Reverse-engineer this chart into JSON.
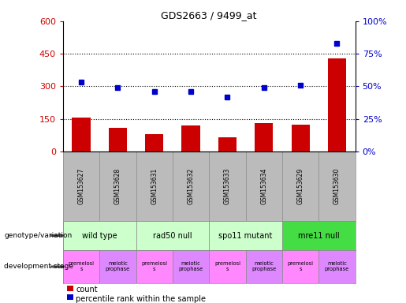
{
  "title": "GDS2663 / 9499_at",
  "samples": [
    "GSM153627",
    "GSM153628",
    "GSM153631",
    "GSM153632",
    "GSM153633",
    "GSM153634",
    "GSM153629",
    "GSM153630"
  ],
  "counts": [
    155,
    110,
    80,
    120,
    65,
    130,
    125,
    430
  ],
  "percentiles": [
    53,
    49,
    46,
    46,
    42,
    49,
    51,
    83
  ],
  "ylim_left": [
    0,
    600
  ],
  "ylim_right": [
    0,
    100
  ],
  "yticks_left": [
    0,
    150,
    300,
    450,
    600
  ],
  "yticks_right": [
    0,
    25,
    50,
    75,
    100
  ],
  "ytick_labels_left": [
    "0",
    "150",
    "300",
    "450",
    "600"
  ],
  "ytick_labels_right": [
    "0%",
    "25%",
    "50%",
    "75%",
    "100%"
  ],
  "hlines": [
    150,
    300,
    450
  ],
  "genotype_groups": [
    {
      "label": "wild type",
      "cols": [
        0,
        1
      ],
      "color": "#ccffcc"
    },
    {
      "label": "rad50 null",
      "cols": [
        2,
        3
      ],
      "color": "#ccffcc"
    },
    {
      "label": "spo11 mutant",
      "cols": [
        4,
        5
      ],
      "color": "#ccffcc"
    },
    {
      "label": "mre11 null",
      "cols": [
        6,
        7
      ],
      "color": "#44dd44"
    }
  ],
  "dev_stages": [
    {
      "label": "premeiosi\ns",
      "col": 0,
      "color": "#ff88ff"
    },
    {
      "label": "meiotic\nprophase",
      "col": 1,
      "color": "#dd88ff"
    },
    {
      "label": "premeiosi\ns",
      "col": 2,
      "color": "#ff88ff"
    },
    {
      "label": "meiotic\nprophase",
      "col": 3,
      "color": "#dd88ff"
    },
    {
      "label": "premeiosi\ns",
      "col": 4,
      "color": "#ff88ff"
    },
    {
      "label": "meiotic\nprophase",
      "col": 5,
      "color": "#dd88ff"
    },
    {
      "label": "premeiosi\ns",
      "col": 6,
      "color": "#ff88ff"
    },
    {
      "label": "meiotic\nprophase",
      "col": 7,
      "color": "#dd88ff"
    }
  ],
  "bar_color": "#cc0000",
  "dot_color": "#0000cc",
  "left_axis_color": "#cc0000",
  "right_axis_color": "#0000cc",
  "bg_color": "#ffffff",
  "plot_bg": "#ffffff",
  "grid_color": "#000000",
  "sample_bg": "#bbbbbb",
  "label_genotype": "genotype/variation",
  "label_devstage": "development stage",
  "legend_count": "count",
  "legend_pct": "percentile rank within the sample"
}
